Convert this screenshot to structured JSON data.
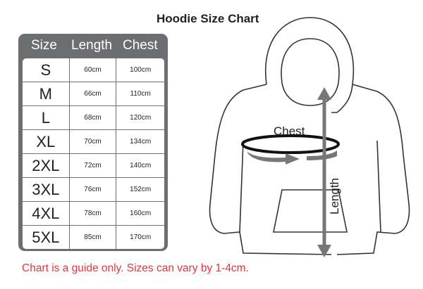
{
  "title": "Hoodie Size Chart",
  "table": {
    "headers": [
      "Size",
      "Length",
      "Chest"
    ],
    "rows": [
      [
        "S",
        "60cm",
        "100cm"
      ],
      [
        "M",
        "66cm",
        "110cm"
      ],
      [
        "L",
        "68cm",
        "120cm"
      ],
      [
        "XL",
        "70cm",
        "134cm"
      ],
      [
        "2XL",
        "72cm",
        "140cm"
      ],
      [
        "3XL",
        "76cm",
        "152cm"
      ],
      [
        "4XL",
        "78cm",
        "160cm"
      ],
      [
        "5XL",
        "85cm",
        "170cm"
      ]
    ]
  },
  "diagram": {
    "chest_label": "Chest",
    "length_label": "Length"
  },
  "note": "Chart is a guide only. Sizes can vary by 1-4cm.",
  "colors": {
    "table": "#6d6e71",
    "note": "#e8333a",
    "arrow": "#777777"
  }
}
